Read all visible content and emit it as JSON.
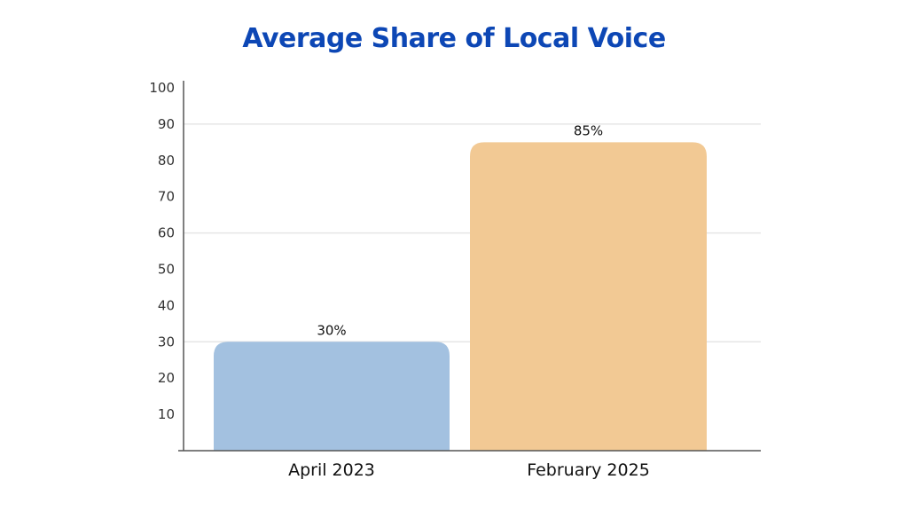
{
  "colors": {
    "title": "#0d47b5",
    "gridline": "#e6e6e6",
    "axis": "#555555",
    "bar_april": "#a3c1e0",
    "bar_february": "#f2c994"
  },
  "chart_data": {
    "type": "bar",
    "title": "Average Share of Local Voice",
    "categories": [
      "April 2023",
      "February 2025"
    ],
    "values": [
      30,
      85
    ],
    "data_labels": [
      "30%",
      "85%"
    ],
    "bar_colors": [
      "#a3c1e0",
      "#f2c994"
    ],
    "ylim": [
      0,
      100
    ],
    "yticks": [
      10,
      20,
      30,
      40,
      50,
      60,
      70,
      80,
      90,
      100
    ],
    "gridlines_at": [
      30,
      60,
      90
    ],
    "xlabel": "",
    "ylabel": "",
    "legend": "none"
  }
}
